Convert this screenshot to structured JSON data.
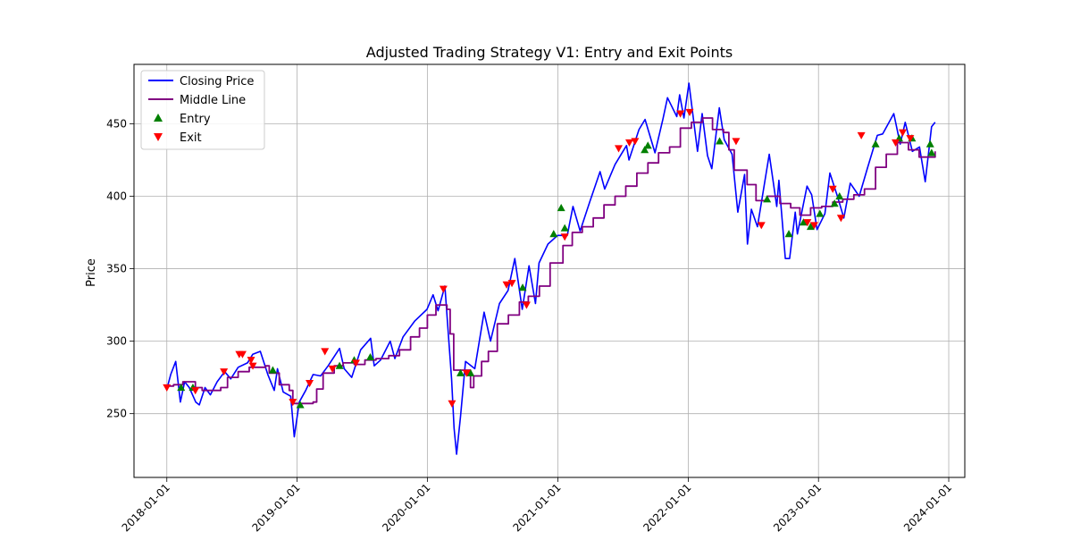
{
  "chart_data": {
    "type": "line",
    "title": "Adjusted Trading Strategy V1: Entry and Exit Points",
    "xlabel": "",
    "ylabel": "Price",
    "x_range": [
      "2017-10-01",
      "2024-02-15"
    ],
    "ylim": [
      206,
      491
    ],
    "x_ticks": [
      "2018-01-01",
      "2019-01-01",
      "2020-01-01",
      "2021-01-01",
      "2022-01-01",
      "2023-01-01",
      "2024-01-01"
    ],
    "y_ticks": [
      250,
      300,
      350,
      400,
      450
    ],
    "grid": true,
    "legend_position": "upper left",
    "series": [
      {
        "name": "Closing Price",
        "color": "#0000ff",
        "style": "line",
        "points": [
          [
            "2018-01-02",
            268
          ],
          [
            "2018-01-12",
            277
          ],
          [
            "2018-01-26",
            286
          ],
          [
            "2018-02-08",
            258
          ],
          [
            "2018-02-20",
            272
          ],
          [
            "2018-03-05",
            268
          ],
          [
            "2018-03-23",
            258
          ],
          [
            "2018-04-02",
            256
          ],
          [
            "2018-04-18",
            268
          ],
          [
            "2018-05-03",
            263
          ],
          [
            "2018-05-22",
            272
          ],
          [
            "2018-06-12",
            279
          ],
          [
            "2018-06-29",
            274
          ],
          [
            "2018-07-20",
            282
          ],
          [
            "2018-08-15",
            285
          ],
          [
            "2018-08-30",
            291
          ],
          [
            "2018-09-20",
            293
          ],
          [
            "2018-10-11",
            277
          ],
          [
            "2018-10-29",
            266
          ],
          [
            "2018-11-07",
            281
          ],
          [
            "2018-11-23",
            265
          ],
          [
            "2018-12-14",
            262
          ],
          [
            "2018-12-24",
            234
          ],
          [
            "2019-01-07",
            258
          ],
          [
            "2019-01-25",
            266
          ],
          [
            "2019-02-15",
            277
          ],
          [
            "2019-03-08",
            276
          ],
          [
            "2019-03-29",
            283
          ],
          [
            "2019-04-30",
            295
          ],
          [
            "2019-05-13",
            281
          ],
          [
            "2019-06-03",
            275
          ],
          [
            "2019-06-28",
            294
          ],
          [
            "2019-07-26",
            302
          ],
          [
            "2019-08-05",
            283
          ],
          [
            "2019-08-23",
            287
          ],
          [
            "2019-09-19",
            300
          ],
          [
            "2019-10-02",
            288
          ],
          [
            "2019-10-25",
            303
          ],
          [
            "2019-11-27",
            314
          ],
          [
            "2019-12-31",
            322
          ],
          [
            "2020-01-17",
            332
          ],
          [
            "2020-01-31",
            321
          ],
          [
            "2020-02-19",
            338
          ],
          [
            "2020-03-09",
            274
          ],
          [
            "2020-03-16",
            240
          ],
          [
            "2020-03-23",
            222
          ],
          [
            "2020-04-03",
            248
          ],
          [
            "2020-04-17",
            286
          ],
          [
            "2020-05-13",
            281
          ],
          [
            "2020-06-08",
            320
          ],
          [
            "2020-06-26",
            300
          ],
          [
            "2020-07-21",
            326
          ],
          [
            "2020-08-14",
            335
          ],
          [
            "2020-09-02",
            357
          ],
          [
            "2020-09-23",
            322
          ],
          [
            "2020-10-12",
            352
          ],
          [
            "2020-10-30",
            326
          ],
          [
            "2020-11-09",
            354
          ],
          [
            "2020-12-04",
            367
          ],
          [
            "2020-12-31",
            373
          ],
          [
            "2021-01-27",
            373
          ],
          [
            "2021-02-12",
            393
          ],
          [
            "2021-03-04",
            376
          ],
          [
            "2021-03-31",
            396
          ],
          [
            "2021-04-29",
            417
          ],
          [
            "2021-05-12",
            405
          ],
          [
            "2021-06-10",
            422
          ],
          [
            "2021-07-12",
            435
          ],
          [
            "2021-07-19",
            425
          ],
          [
            "2021-08-16",
            446
          ],
          [
            "2021-09-02",
            453
          ],
          [
            "2021-09-30",
            430
          ],
          [
            "2021-10-22",
            453
          ],
          [
            "2021-11-04",
            468
          ],
          [
            "2021-11-30",
            455
          ],
          [
            "2021-12-08",
            470
          ],
          [
            "2021-12-20",
            454
          ],
          [
            "2022-01-03",
            478
          ],
          [
            "2022-01-27",
            431
          ],
          [
            "2022-02-09",
            457
          ],
          [
            "2022-02-24",
            428
          ],
          [
            "2022-03-08",
            419
          ],
          [
            "2022-03-29",
            461
          ],
          [
            "2022-04-12",
            439
          ],
          [
            "2022-05-04",
            429
          ],
          [
            "2022-05-20",
            389
          ],
          [
            "2022-06-08",
            415
          ],
          [
            "2022-06-16",
            367
          ],
          [
            "2022-06-27",
            391
          ],
          [
            "2022-07-14",
            379
          ],
          [
            "2022-08-16",
            429
          ],
          [
            "2022-09-06",
            393
          ],
          [
            "2022-09-12",
            411
          ],
          [
            "2022-09-30",
            357
          ],
          [
            "2022-10-12",
            357
          ],
          [
            "2022-10-28",
            389
          ],
          [
            "2022-11-03",
            374
          ],
          [
            "2022-11-30",
            407
          ],
          [
            "2022-12-13",
            401
          ],
          [
            "2022-12-28",
            377
          ],
          [
            "2023-01-19",
            388
          ],
          [
            "2023-02-02",
            416
          ],
          [
            "2023-02-23",
            400
          ],
          [
            "2023-03-13",
            385
          ],
          [
            "2023-03-31",
            409
          ],
          [
            "2023-04-25",
            400
          ],
          [
            "2023-05-19",
            420
          ],
          [
            "2023-06-15",
            442
          ],
          [
            "2023-06-30",
            443
          ],
          [
            "2023-07-31",
            457
          ],
          [
            "2023-08-18",
            436
          ],
          [
            "2023-09-01",
            451
          ],
          [
            "2023-09-21",
            431
          ],
          [
            "2023-10-11",
            434
          ],
          [
            "2023-10-27",
            410
          ],
          [
            "2023-11-14",
            448
          ],
          [
            "2023-11-24",
            451
          ]
        ]
      },
      {
        "name": "Middle Line",
        "color": "#800080",
        "style": "step",
        "points": [
          [
            "2018-01-02",
            269
          ],
          [
            "2018-01-20",
            270
          ],
          [
            "2018-02-15",
            272
          ],
          [
            "2018-03-22",
            268
          ],
          [
            "2018-04-10",
            266
          ],
          [
            "2018-06-01",
            268
          ],
          [
            "2018-06-20",
            275
          ],
          [
            "2018-07-20",
            279
          ],
          [
            "2018-08-20",
            282
          ],
          [
            "2018-10-05",
            283
          ],
          [
            "2018-10-15",
            278
          ],
          [
            "2018-11-12",
            270
          ],
          [
            "2018-12-10",
            266
          ],
          [
            "2018-12-20",
            257
          ],
          [
            "2019-02-15",
            258
          ],
          [
            "2019-02-25",
            267
          ],
          [
            "2019-03-15",
            278
          ],
          [
            "2019-04-15",
            283
          ],
          [
            "2019-05-10",
            285
          ],
          [
            "2019-06-10",
            284
          ],
          [
            "2019-07-10",
            287
          ],
          [
            "2019-08-10",
            288
          ],
          [
            "2019-09-15",
            290
          ],
          [
            "2019-10-15",
            294
          ],
          [
            "2019-11-15",
            303
          ],
          [
            "2019-12-10",
            309
          ],
          [
            "2020-01-01",
            318
          ],
          [
            "2020-01-25",
            325
          ],
          [
            "2020-02-25",
            322
          ],
          [
            "2020-03-05",
            305
          ],
          [
            "2020-03-15",
            280
          ],
          [
            "2020-05-01",
            268
          ],
          [
            "2020-05-10",
            276
          ],
          [
            "2020-06-01",
            286
          ],
          [
            "2020-06-20",
            293
          ],
          [
            "2020-07-15",
            312
          ],
          [
            "2020-08-15",
            318
          ],
          [
            "2020-09-15",
            327
          ],
          [
            "2020-10-10",
            331
          ],
          [
            "2020-11-10",
            338
          ],
          [
            "2020-12-10",
            354
          ],
          [
            "2021-01-15",
            366
          ],
          [
            "2021-02-10",
            375
          ],
          [
            "2021-03-10",
            379
          ],
          [
            "2021-04-10",
            385
          ],
          [
            "2021-05-10",
            394
          ],
          [
            "2021-06-10",
            400
          ],
          [
            "2021-07-10",
            407
          ],
          [
            "2021-08-10",
            416
          ],
          [
            "2021-09-10",
            423
          ],
          [
            "2021-10-10",
            430
          ],
          [
            "2021-11-10",
            434
          ],
          [
            "2021-12-10",
            447
          ],
          [
            "2022-01-10",
            451
          ],
          [
            "2022-02-10",
            454
          ],
          [
            "2022-03-10",
            446
          ],
          [
            "2022-04-10",
            444
          ],
          [
            "2022-04-25",
            432
          ],
          [
            "2022-05-10",
            418
          ],
          [
            "2022-06-15",
            408
          ],
          [
            "2022-07-10",
            397
          ],
          [
            "2022-08-10",
            400
          ],
          [
            "2022-09-15",
            395
          ],
          [
            "2022-10-15",
            392
          ],
          [
            "2022-11-10",
            387
          ],
          [
            "2022-12-10",
            392
          ],
          [
            "2023-01-10",
            393
          ],
          [
            "2023-02-10",
            396
          ],
          [
            "2023-03-10",
            398
          ],
          [
            "2023-04-10",
            401
          ],
          [
            "2023-05-10",
            405
          ],
          [
            "2023-06-10",
            420
          ],
          [
            "2023-07-10",
            429
          ],
          [
            "2023-08-10",
            437
          ],
          [
            "2023-09-10",
            432
          ],
          [
            "2023-10-10",
            427
          ],
          [
            "2023-11-24",
            431
          ]
        ]
      },
      {
        "name": "Entry",
        "color": "#008000",
        "style": "marker-up",
        "points": [
          [
            "2018-02-10",
            268
          ],
          [
            "2018-03-15",
            268
          ],
          [
            "2018-10-25",
            280
          ],
          [
            "2019-01-10",
            256
          ],
          [
            "2019-04-30",
            283
          ],
          [
            "2019-06-10",
            287
          ],
          [
            "2019-07-25",
            289
          ],
          [
            "2020-04-03",
            278
          ],
          [
            "2020-05-01",
            278
          ],
          [
            "2020-09-24",
            337
          ],
          [
            "2020-12-20",
            374
          ],
          [
            "2021-01-10",
            392
          ],
          [
            "2021-01-20",
            378
          ],
          [
            "2021-09-01",
            432
          ],
          [
            "2021-09-10",
            435
          ],
          [
            "2022-03-30",
            438
          ],
          [
            "2022-08-10",
            398
          ],
          [
            "2022-10-10",
            374
          ],
          [
            "2022-11-20",
            382
          ],
          [
            "2022-12-10",
            379
          ],
          [
            "2023-01-05",
            388
          ],
          [
            "2023-02-15",
            395
          ],
          [
            "2023-03-01",
            400
          ],
          [
            "2023-06-10",
            436
          ],
          [
            "2023-08-15",
            440
          ],
          [
            "2023-09-20",
            440
          ],
          [
            "2023-11-10",
            436
          ],
          [
            "2023-11-14",
            430
          ]
        ]
      },
      {
        "name": "Exit",
        "color": "#ff0000",
        "style": "marker-down",
        "points": [
          [
            "2018-01-01",
            268
          ],
          [
            "2018-03-22",
            266
          ],
          [
            "2018-06-10",
            279
          ],
          [
            "2018-07-23",
            291
          ],
          [
            "2018-08-01",
            291
          ],
          [
            "2018-08-25",
            287
          ],
          [
            "2018-08-30",
            283
          ],
          [
            "2018-12-20",
            258
          ],
          [
            "2019-02-05",
            271
          ],
          [
            "2019-03-20",
            293
          ],
          [
            "2019-04-10",
            281
          ],
          [
            "2019-06-15",
            285
          ],
          [
            "2020-02-15",
            336
          ],
          [
            "2020-03-10",
            257
          ],
          [
            "2020-04-20",
            278
          ],
          [
            "2020-08-10",
            339
          ],
          [
            "2020-08-25",
            340
          ],
          [
            "2020-10-05",
            325
          ],
          [
            "2021-01-20",
            372
          ],
          [
            "2021-06-20",
            433
          ],
          [
            "2021-07-20",
            437
          ],
          [
            "2021-08-05",
            438
          ],
          [
            "2021-12-10",
            457
          ],
          [
            "2022-01-05",
            458
          ],
          [
            "2022-05-15",
            438
          ],
          [
            "2022-07-25",
            380
          ],
          [
            "2022-12-01",
            382
          ],
          [
            "2022-12-20",
            380
          ],
          [
            "2023-02-10",
            405
          ],
          [
            "2023-03-05",
            385
          ],
          [
            "2023-05-01",
            442
          ],
          [
            "2023-08-05",
            437
          ],
          [
            "2023-08-25",
            444
          ],
          [
            "2023-09-15",
            440
          ]
        ]
      }
    ]
  }
}
